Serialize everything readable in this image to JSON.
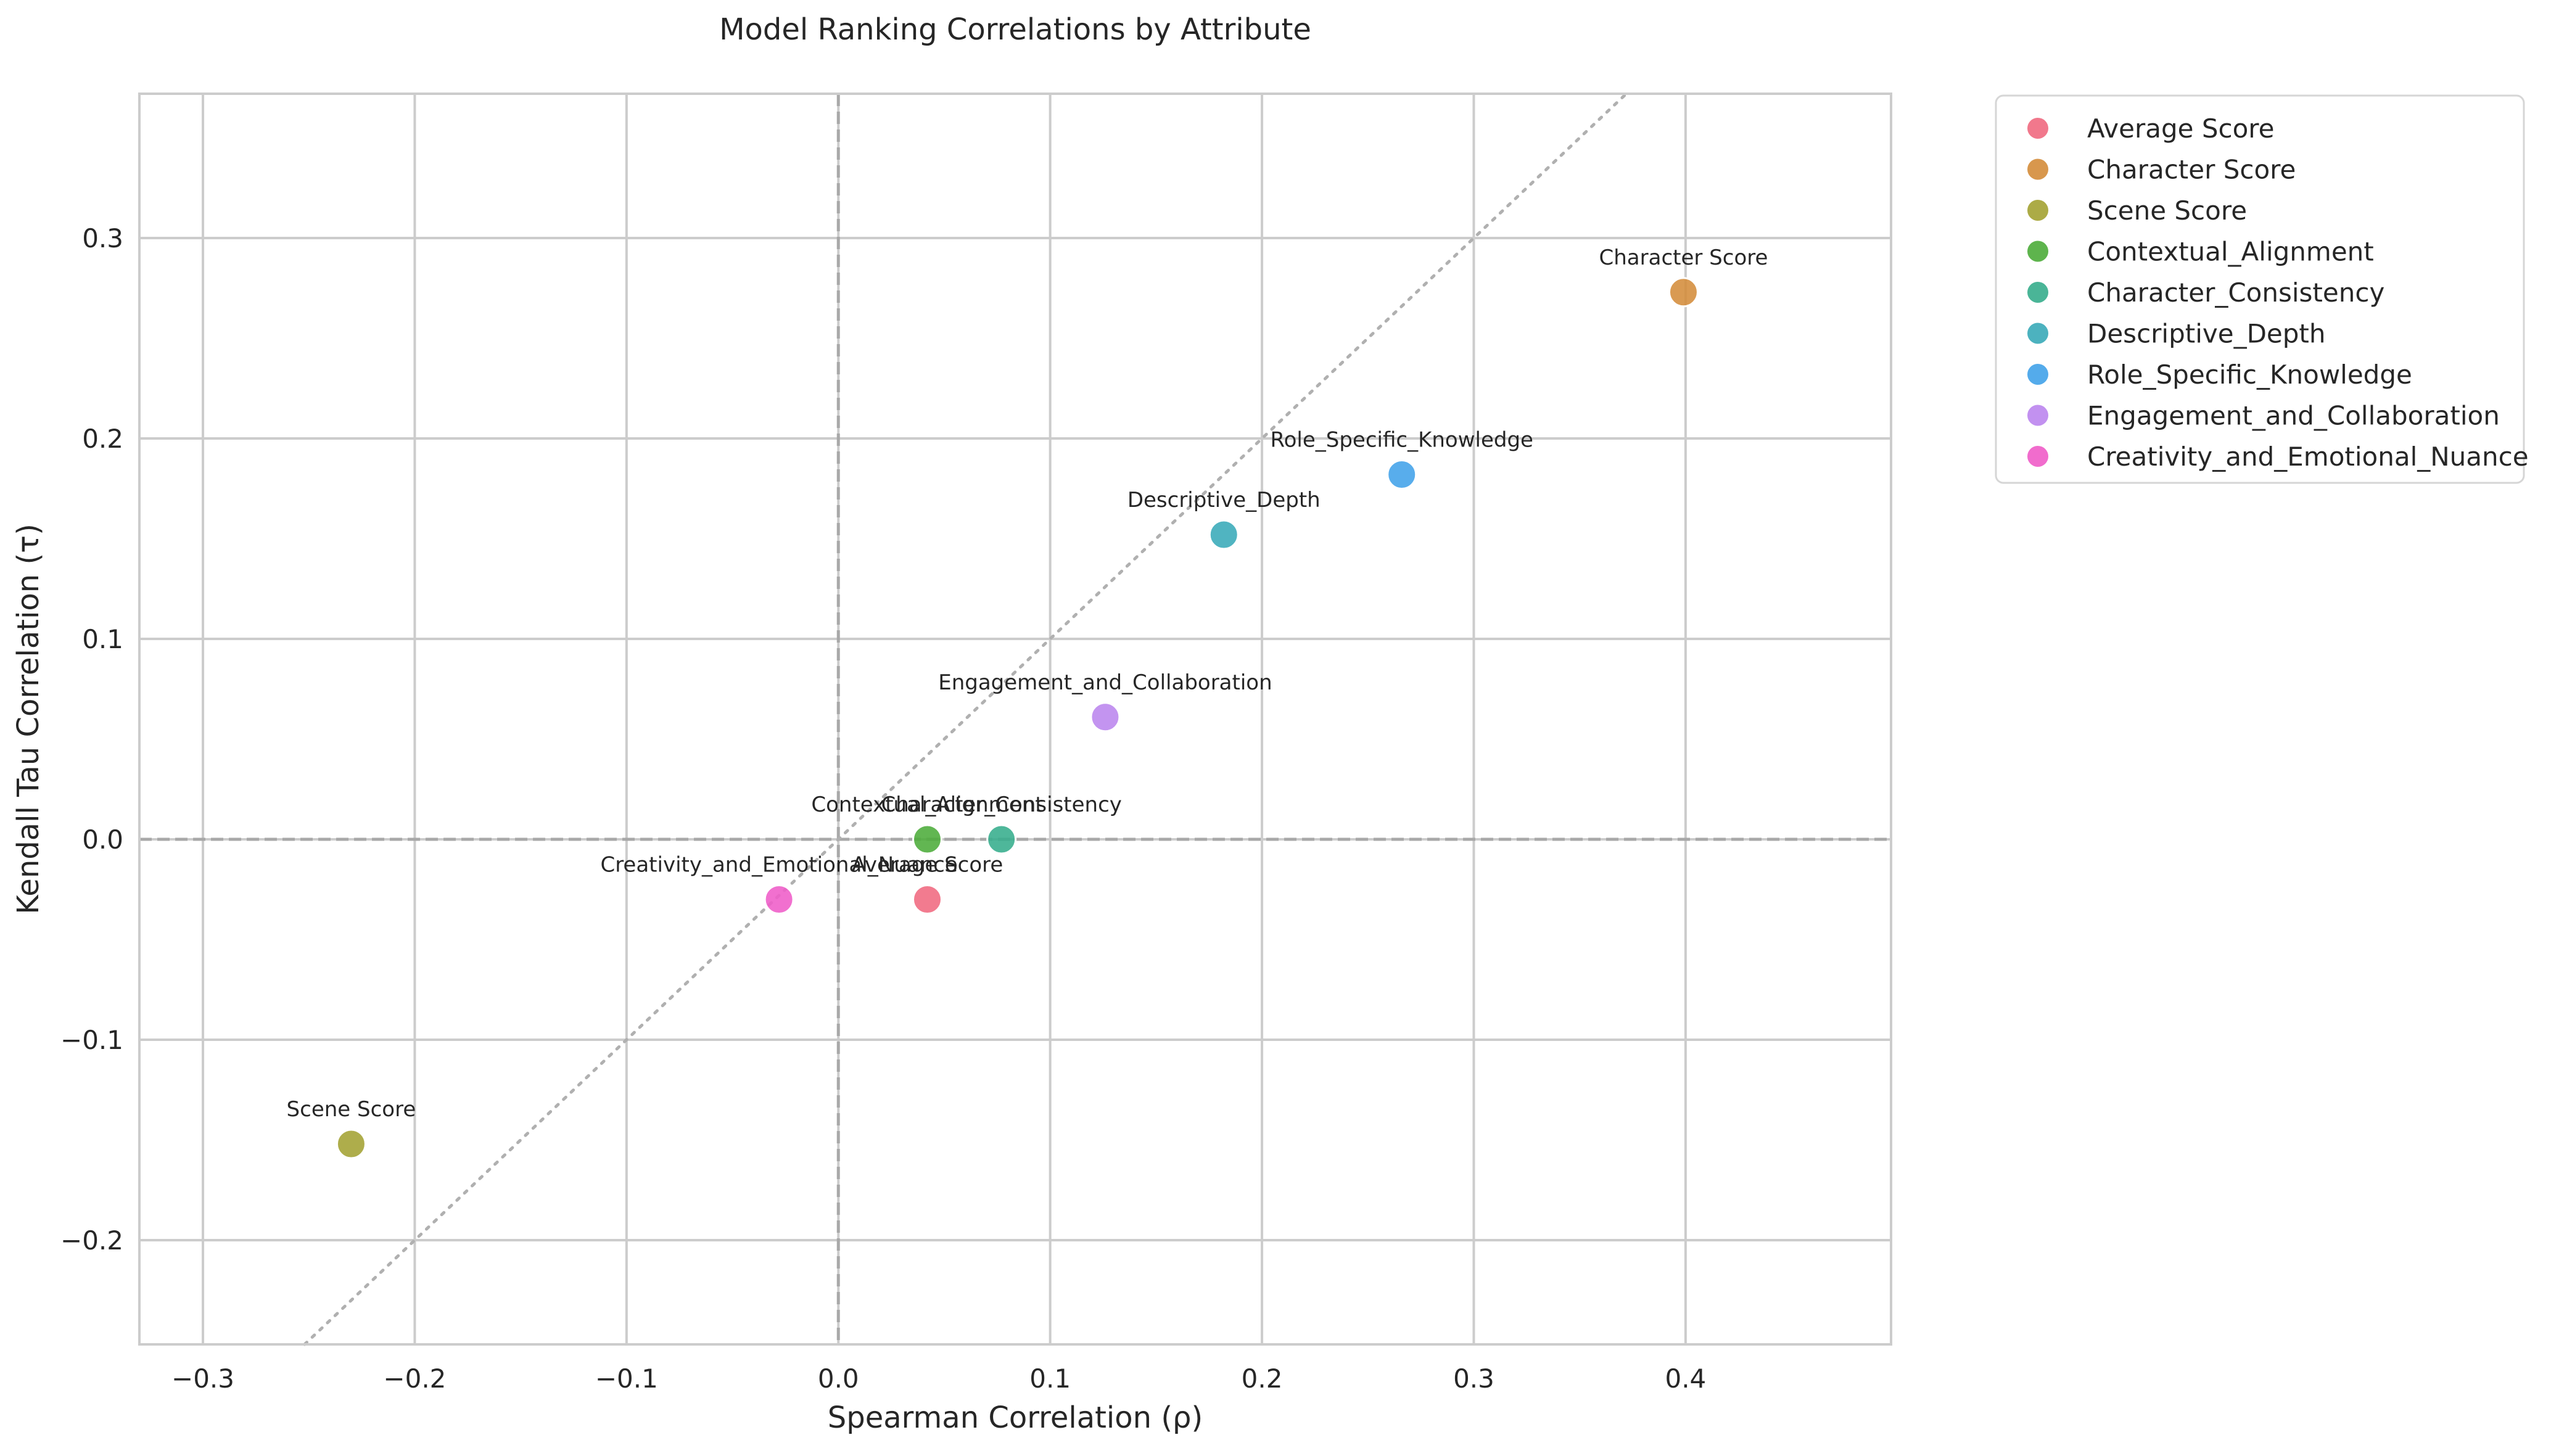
{
  "chart_data": {
    "type": "scatter",
    "title": "Model Ranking Correlations by Attribute",
    "xlabel": "Spearman Correlation (ρ)",
    "ylabel": "Kendall Tau Correlation (τ)",
    "xlim": [
      -0.33,
      0.497
    ],
    "ylim": [
      -0.252,
      0.372
    ],
    "x_ticks": [
      -0.3,
      -0.2,
      -0.1,
      0.0,
      0.1,
      0.2,
      0.3,
      0.4
    ],
    "x_tick_labels": [
      "−0.3",
      "−0.2",
      "−0.1",
      "0.0",
      "0.1",
      "0.2",
      "0.3",
      "0.4"
    ],
    "y_ticks": [
      -0.2,
      -0.1,
      0.0,
      0.1,
      0.2,
      0.3
    ],
    "y_tick_labels": [
      "−0.2",
      "−0.1",
      "0.0",
      "0.1",
      "0.2",
      "0.3"
    ],
    "grid": true,
    "reference_lines": [
      "x = 0 (dashed)",
      "y = 0 (dashed)",
      "y = x (dotted)"
    ],
    "legend_placement": "outside-right-top",
    "series": [
      {
        "name": "Average Score",
        "x": 0.042,
        "y": -0.03,
        "color": "#f0697f"
      },
      {
        "name": "Character Score",
        "x": 0.399,
        "y": 0.273,
        "color": "#d48c3a"
      },
      {
        "name": "Scene Score",
        "x": -0.23,
        "y": -0.152,
        "color": "#a3a232"
      },
      {
        "name": "Contextual_Alignment",
        "x": 0.042,
        "y": 0.0,
        "color": "#4cac3a"
      },
      {
        "name": "Character_Consistency",
        "x": 0.077,
        "y": 0.0,
        "color": "#36ad8c"
      },
      {
        "name": "Descriptive_Depth",
        "x": 0.182,
        "y": 0.152,
        "color": "#38aab8"
      },
      {
        "name": "Role_Specific_Knowledge",
        "x": 0.266,
        "y": 0.182,
        "color": "#41a2e9"
      },
      {
        "name": "Engagement_and_Collaboration",
        "x": 0.126,
        "y": 0.061,
        "color": "#bb85ee"
      },
      {
        "name": "Creativity_and_Emotional_Nuance",
        "x": -0.028,
        "y": -0.03,
        "color": "#ef5cc8"
      }
    ]
  }
}
